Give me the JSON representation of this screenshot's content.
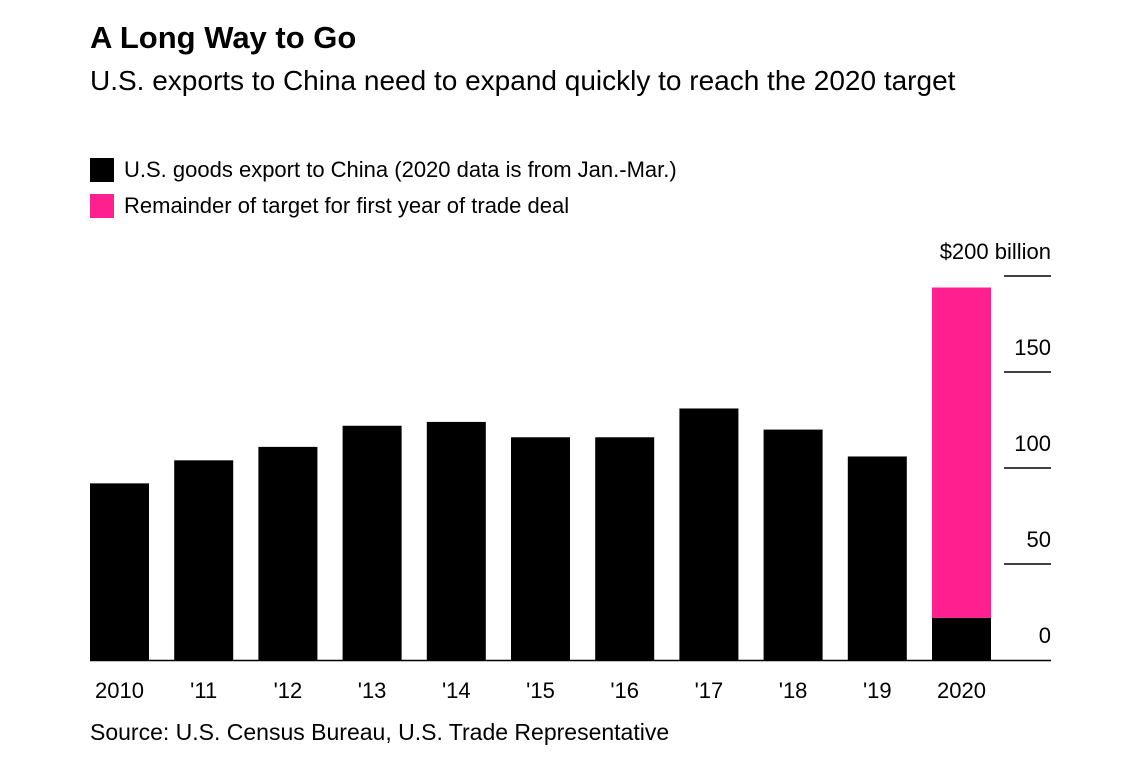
{
  "title": "A Long Way to Go",
  "subtitle": "U.S. exports to China need to expand quickly to reach the 2020 target",
  "source": "Source: U.S. Census Bureau, U.S. Trade Representative",
  "colors": {
    "export": "#000000",
    "remainder": "#ff1f8e"
  },
  "chart_data": {
    "type": "bar",
    "stacked": true,
    "categories": [
      "2010",
      "'11",
      "'12",
      "'13",
      "'14",
      "'15",
      "'16",
      "'17",
      "'18",
      "'19",
      "2020"
    ],
    "series": [
      {
        "name": "U.S. goods export to China (2020 data is from Jan.-Mar.)",
        "color": "#000000",
        "values": [
          92,
          104,
          111,
          122,
          124,
          116,
          116,
          131,
          120,
          106,
          22
        ]
      },
      {
        "name": "Remainder of target for first year of trade deal",
        "color": "#ff1f8e",
        "values": [
          0,
          0,
          0,
          0,
          0,
          0,
          0,
          0,
          0,
          0,
          172
        ]
      }
    ],
    "ylim": [
      0,
      200
    ],
    "yticks": [
      0,
      50,
      100,
      150,
      200
    ],
    "ytick_labels": [
      "0",
      "50",
      "100",
      "150",
      "$200 billion"
    ],
    "y_axis_position": "right",
    "legend_position": "top-left",
    "grid": false
  }
}
